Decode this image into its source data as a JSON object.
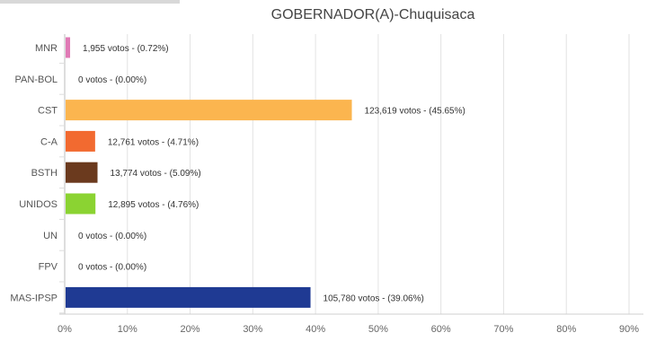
{
  "chart_data": {
    "type": "bar",
    "orientation": "horizontal",
    "title": "GOBERNADOR(A)-Chuquisaca",
    "categories": [
      "MNR",
      "PAN-BOL",
      "CST",
      "C-A",
      "BSTH",
      "UNIDOS",
      "UN",
      "FPV",
      "MAS-IPSP"
    ],
    "values": [
      0.72,
      0.0,
      45.65,
      4.71,
      5.09,
      4.76,
      0.0,
      0.0,
      39.06
    ],
    "value_labels": [
      "1,955 votos - (0.72%)",
      "0 votos - (0.00%)",
      "123,619 votos - (45.65%)",
      "12,761 votos - (4.71%)",
      "13,774 votos - (5.09%)",
      "12,895 votos - (4.76%)",
      "0 votos - (0.00%)",
      "0 votos - (0.00%)",
      "105,780 votos - (39.06%)"
    ],
    "colors": [
      "#e07ab5",
      "#9e9e9e",
      "#fbb54f",
      "#f26a30",
      "#6b3a1e",
      "#8bd332",
      "#9e9e9e",
      "#9e9e9e",
      "#1f3a93"
    ],
    "xlim": [
      0,
      90
    ],
    "xticks": [
      "0%",
      "10%",
      "20%",
      "30%",
      "40%",
      "50%",
      "60%",
      "70%",
      "80%",
      "90%"
    ],
    "grid": true
  }
}
